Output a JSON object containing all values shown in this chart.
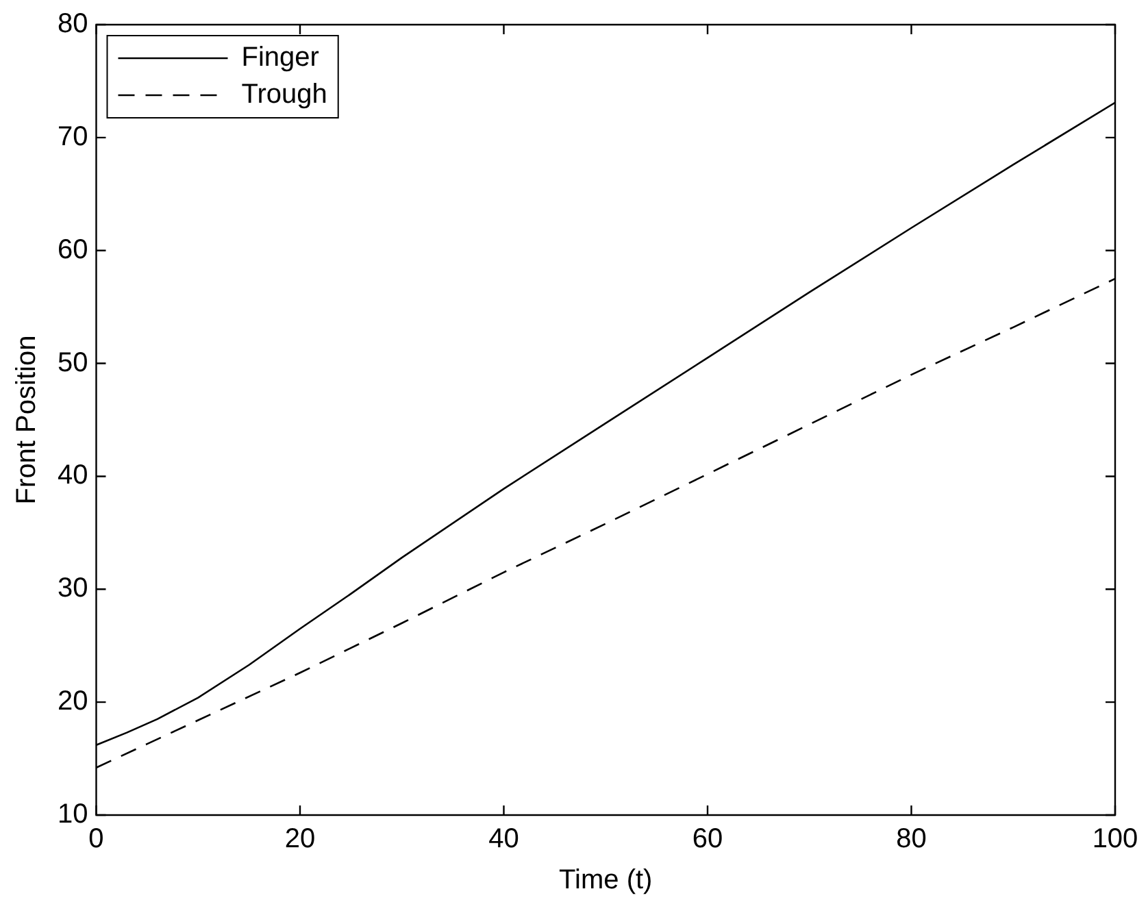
{
  "chart_data": {
    "type": "line",
    "xlabel": "Time (t)",
    "ylabel": "Front Position",
    "xlim": [
      0,
      100
    ],
    "ylim": [
      10,
      80
    ],
    "xticks": [
      0,
      20,
      40,
      60,
      80,
      100
    ],
    "yticks": [
      10,
      20,
      30,
      40,
      50,
      60,
      70,
      80
    ],
    "grid": false,
    "legend": "top left",
    "marker": "none",
    "series": [
      {
        "name": "Finger",
        "color": "#000000",
        "line_style": "solid",
        "x": [
          0,
          3,
          6,
          10,
          15,
          20,
          25,
          30,
          40,
          50,
          60,
          70,
          80,
          90,
          100
        ],
        "values": [
          16.2,
          17.3,
          18.5,
          20.4,
          23.3,
          26.5,
          29.6,
          32.8,
          38.9,
          44.7,
          50.5,
          56.3,
          62.0,
          67.6,
          73.1
        ]
      },
      {
        "name": "Trough",
        "color": "#000000",
        "line_style": "dashed",
        "x": [
          0,
          5,
          10,
          20,
          30,
          40,
          50,
          60,
          70,
          80,
          90,
          100
        ],
        "values": [
          14.2,
          16.3,
          18.4,
          22.6,
          27.0,
          31.5,
          35.8,
          40.2,
          44.6,
          49.0,
          53.2,
          57.5
        ]
      }
    ]
  }
}
